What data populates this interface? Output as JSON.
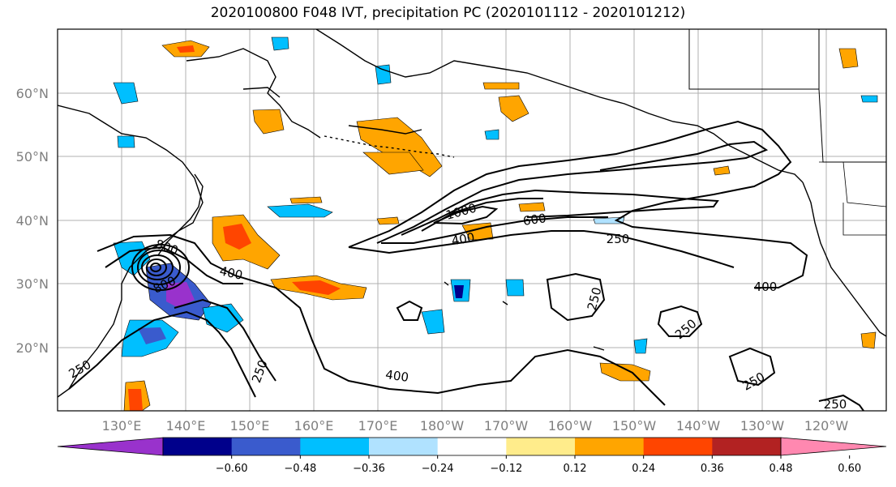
{
  "title": "2020100800 F048 IVT, precipitation PC (2020101112 - 2020101212)",
  "latitude_labels": [
    "60°N",
    "50°N",
    "40°N",
    "30°N",
    "20°N"
  ],
  "longitude_labels": [
    "130°E",
    "140°E",
    "150°E",
    "160°E",
    "170°E",
    "180°W",
    "170°W",
    "160°W",
    "150°W",
    "140°W",
    "130°W",
    "120°W"
  ],
  "ivt_contour_labels": [
    "800",
    "800",
    "400",
    "250",
    "250",
    "400",
    "1000",
    "400",
    "600",
    "250",
    "250",
    "250",
    "400",
    "250",
    "250"
  ],
  "colorbar": {
    "tick_labels": [
      "−0.60",
      "−0.48",
      "−0.36",
      "−0.24",
      "−0.12",
      "0.12",
      "0.24",
      "0.36",
      "0.48",
      "0.60"
    ],
    "colors": [
      "#9932cc",
      "#00008b",
      "#3a5bcd",
      "#00bfff",
      "#b0e2ff",
      "#ffffff",
      "#ffec8b",
      "#ffa500",
      "#ff4500",
      "#b22222",
      "#ff88b0"
    ]
  },
  "colors": {
    "contour": "#000000",
    "grid": "#b0b0b0",
    "coast": "#000000"
  }
}
